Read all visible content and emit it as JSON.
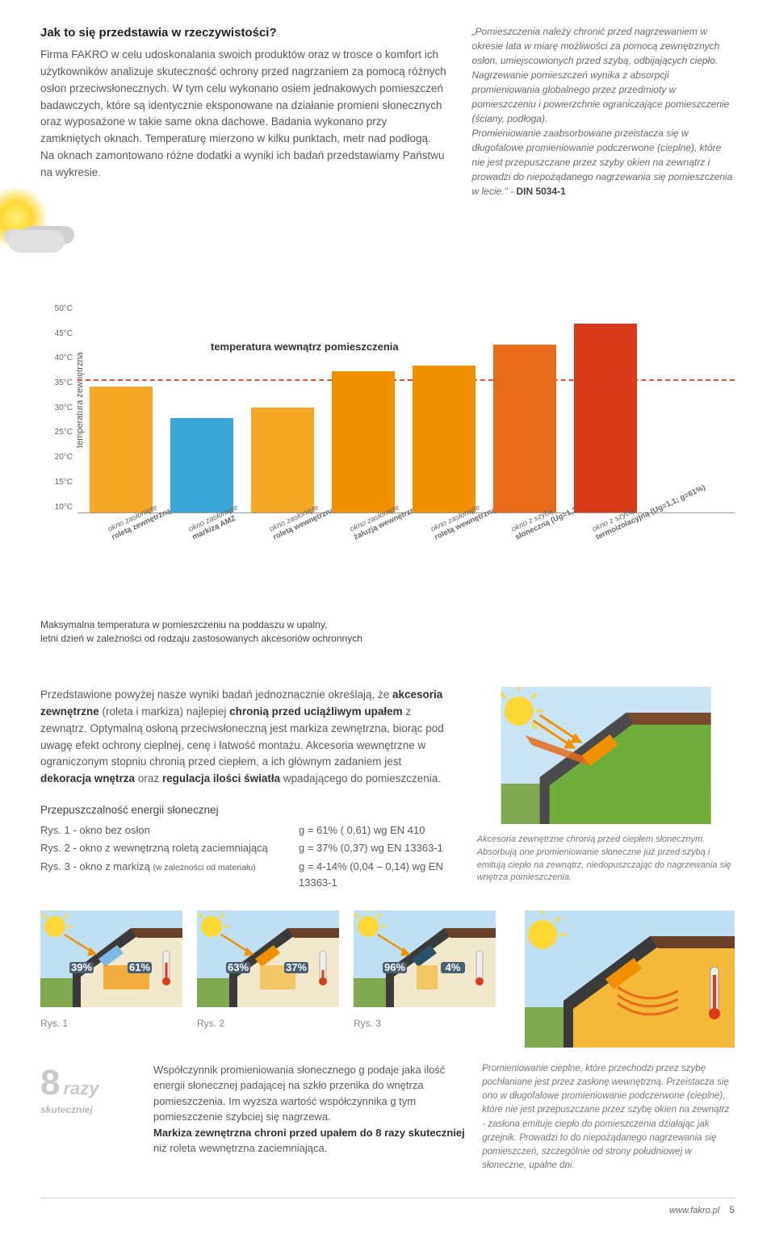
{
  "top": {
    "heading": "Jak to się przedstawia w rzeczywistości?",
    "body": "Firma FAKRO w celu udoskonalania swoich produktów oraz w trosce o komfort ich użytkowników analizuje skuteczność ochrony przed nagrzaniem za pomocą różnych osłon przeciwsłonecznych. W tym celu wykonano osiem jednakowych pomieszczeń badawczych, które są identycznie eksponowane na działanie promieni słonecznych oraz wyposażone w takie same okna dachowe. Badania wykonano przy zamkniętych oknach. Temperaturę mierzono w kilku punktach, metr nad podłogą. Na oknach zamontowano różne dodatki a wyniki ich badań przedstawiamy Państwu na wykresie.",
    "side_p1": "„Pomieszczenia należy chronić przed nagrzewaniem w okresie lata w miarę możliwości za pomocą zewnętrznych osłon, umiejscowionych przed szybą, odbijających ciepło.",
    "side_p2": "Nagrzewanie pomieszczeń wynika z absorpcji promieniowania globalnego przez przedmioty w pomieszczeniu i powierzchnie ograniczające pomieszczenie (ściany, podłoga).",
    "side_p3": "Promieniowanie zaabsorbowane przeistacza się w długofalowe promieniowanie podczerwone (cieplne), które nie jest przepuszczane przez szyby okien na zewnątrz i prowadzi do niepożądanego nagrzewania się pomieszczenia w lecie.\" - ",
    "din": "DIN 5034-1"
  },
  "chart": {
    "type": "bar",
    "title": "temperatura wewnątrz pomieszczenia",
    "ylabel": "temperatura\nzewnętrzna",
    "ylim": [
      10,
      50
    ],
    "ticks": [
      "50°C",
      "45°C",
      "40°C",
      "35°C",
      "30°C",
      "25°C",
      "20°C",
      "15°C",
      "10°C"
    ],
    "dash_value": 35,
    "bars": [
      {
        "l1": "okno zasłonięte",
        "l2": "roletą zewnętrzną ARZ",
        "v": 34,
        "c": "#f5a623"
      },
      {
        "l1": "okno zasłonięte",
        "l2": "markizą AMZ",
        "v": 28,
        "c": "#3aa7d9"
      },
      {
        "l1": "okno zasłonięte",
        "l2": "roletą wewnętrzną ARF",
        "v": 30,
        "c": "#f5a623"
      },
      {
        "l1": "okno zasłonięte",
        "l2": "żaluzją wewnętrzną AJP",
        "v": 37,
        "c": "#f29100"
      },
      {
        "l1": "okno zasłonięte",
        "l2": "roletą wewnętrzną ARS",
        "v": 38,
        "c": "#f29100"
      },
      {
        "l1": "okno z szybą",
        "l2": "słoneczną (Ug=1,1; g=30%)",
        "v": 42,
        "c": "#e86b1c"
      },
      {
        "l1": "okno z szybą",
        "l2": "termoizolacyjną (Ug=1,1; g=61%)",
        "v": 46,
        "c": "#d93a1a"
      }
    ],
    "caption": "Maksymalna temperatura w pomieszczeniu na poddaszu w upalny,\nletni dzień w zależności od rodzaju zastosowanych akcesoriów ochronnych"
  },
  "mid": {
    "para": "Przedstawione powyżej nasze wyniki badań jednoznacznie określają, że <b>akcesoria zewnętrzne</b> (roleta i markiza) najlepiej <b>chronią przed uciążliwym upałem</b> z zewnątrz. Optymalną osłoną przeciwsłoneczną jest markiza zewnętrzna, biorąc pod uwagę efekt ochrony cieplnej, cenę i łatwość montażu. Akcesoria wewnętrzne w ograniczonym stopniu chronią przed ciepłem, a ich głównym zadaniem jest <b>dekoracja wnętrza</b> oraz <b>regulacja ilości światła</b> wpadającego do pomieszczenia.",
    "g_title": "Przepuszczalność energii słonecznej",
    "rows": [
      {
        "l": "Rys. 1 - okno bez osłon",
        "r": "g = 61% ( 0,61) wg EN 410"
      },
      {
        "l": "Rys. 2 - okno z wewnętrzną roletą zaciemniającą",
        "r": "g = 37% (0,37) wg EN 13363-1"
      },
      {
        "l": "Rys. 3 - okno z markizą <small>(w zależności od materiału)</small>",
        "r": "g = 4-14% (0,04 – 0,14) wg EN 13363-1"
      }
    ],
    "right_cap": "Akcesoria zewnętrzne chronią przed ciepłem słonecznym. Absorbują one promieniowanie słoneczne już przed szybą i emitują ciepło na zewnątrz, niedopuszczając do nagrzewania się wnętrza pomieszczenia."
  },
  "rys": [
    {
      "cap": "Rys. 1",
      "left_pct": "39%",
      "right_pct": "61%",
      "heat_w": 0.61,
      "heat_c": "#f29100",
      "window_c": "#7fb8e0"
    },
    {
      "cap": "Rys. 2",
      "left_pct": "63%",
      "right_pct": "37%",
      "heat_w": 0.37,
      "heat_c": "#f5b93a",
      "window_c": "#f29100"
    },
    {
      "cap": "Rys. 3",
      "left_pct": "96%",
      "right_pct": "4%",
      "heat_w": 0.04,
      "heat_c": "#f5b93a",
      "window_c": "#2b526b"
    }
  ],
  "big_house": {
    "interior": "#6fae3a",
    "roof": "#7a4a2f",
    "wall": "#d8c9a8",
    "window": "#f29100",
    "heat": "#e86b1c"
  },
  "bottom": {
    "eight": "8",
    "razy": "razy",
    "skut": "skuteczniej",
    "mid": "Współczynnik promieniowania słonecznego g podaje jaka ilość energii słonecznej padającej na szkło przenika do wnętrza pomieszczenia. Im wyższa wartość współczynnika g tym pomieszczenie szybciej się nagrzewa.\n<b>Markiza zewnętrzna chroni przed upałem do 8 razy skuteczniej</b> niż roleta wewnętrzna zaciemniająca.",
    "right": "Promieniowanie cieplne, które przechodzi przez szybę pochłaniane jest przez zasłonę wewnętrzną. Przeistacza się ono w długofalowe promieniowanie podczerwone (cieplne), które nie jest przepuszczane przez szybę okien na zewnątrz - zasłona emituje ciepło do pomieszczenia działając jak grzejnik. Prowadzi to do niepożądanego nagrzewania się pomieszczeń, szczególnie od strony południowej w słoneczne, upalne dni."
  },
  "footer": {
    "url": "www.fakro.pl",
    "page": "5"
  }
}
